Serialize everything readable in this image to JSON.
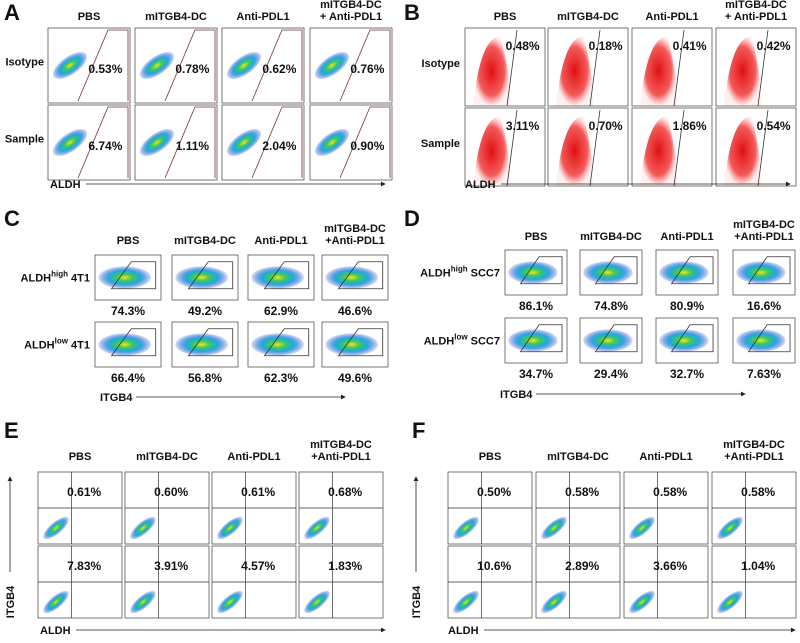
{
  "panels": [
    {
      "letter": "A",
      "columns": [
        [
          "PBS"
        ],
        [
          "mITGB4-DC"
        ],
        [
          "Anti-PDL1"
        ],
        [
          "mITGB4-DC",
          "+ Anti-PDL1"
        ]
      ],
      "rows": [
        {
          "label": "Isotype",
          "values": [
            "0.53%",
            "0.78%",
            "0.62%",
            "0.76%"
          ]
        },
        {
          "label": "Sample",
          "values": [
            "6.74%",
            "1.11%",
            "2.04%",
            "0.90%"
          ],
          "highlight_color": "#e8261f"
        }
      ],
      "x_axis_label": "ALDH"
    },
    {
      "letter": "B",
      "columns": [
        [
          "PBS"
        ],
        [
          "mITGB4-DC"
        ],
        [
          "Anti-PDL1"
        ],
        [
          "mITGB4-DC",
          "+ Anti-PDL1"
        ]
      ],
      "rows": [
        {
          "label": "Isotype",
          "values": [
            "0.48%",
            "0.18%",
            "0.41%",
            "0.42%"
          ]
        },
        {
          "label": "Sample",
          "values": [
            "3.11%",
            "0.70%",
            "1.86%",
            "0.54%"
          ],
          "highlight_color": "#e8261f"
        }
      ],
      "x_axis_label": "ALDH"
    },
    {
      "letter": "C",
      "columns": [
        [
          "PBS"
        ],
        [
          "mITGB4-DC"
        ],
        [
          "Anti-PDL1"
        ],
        [
          "mITGB4-DC",
          "+Anti-PDL1"
        ]
      ],
      "rows": [
        {
          "label": {
            "text": "ALDH",
            "sup": "high",
            "suffix": " 4T1"
          },
          "values": [
            "74.3%",
            "49.2%",
            "62.9%",
            "46.6%"
          ],
          "highlight_color": "#e8261f"
        },
        {
          "label": {
            "text": "ALDH",
            "sup": "low",
            "suffix": " 4T1"
          },
          "values": [
            "66.4%",
            "56.8%",
            "62.3%",
            "49.6%"
          ],
          "highlight_color": "#e8261f"
        }
      ],
      "x_axis_label": "ITGB4"
    },
    {
      "letter": "D",
      "columns": [
        [
          "PBS"
        ],
        [
          "mITGB4-DC"
        ],
        [
          "Anti-PDL1"
        ],
        [
          "mITGB4-DC",
          "+Anti-PDL1"
        ]
      ],
      "rows": [
        {
          "label": {
            "text": "ALDH",
            "sup": "high",
            "suffix": " SCC7"
          },
          "values": [
            "86.1%",
            "74.8%",
            "80.9%",
            "16.6%"
          ],
          "highlight_color": "#e8261f"
        },
        {
          "label": {
            "text": "ALDH",
            "sup": "low",
            "suffix": " SCC7"
          },
          "values": [
            "34.7%",
            "29.4%",
            "32.7%",
            "7.63%"
          ],
          "highlight_color": "#e8261f"
        }
      ],
      "x_axis_label": "ITGB4"
    },
    {
      "letter": "E",
      "columns": [
        [
          "PBS"
        ],
        [
          "mITGB4-DC"
        ],
        [
          "Anti-PDL1"
        ],
        [
          "mITGB4-DC",
          "+Anti-PDL1"
        ]
      ],
      "rows": [
        {
          "values": [
            "0.61%",
            "0.60%",
            "0.61%",
            "0.68%"
          ]
        },
        {
          "values": [
            "7.83%",
            "3.91%",
            "4.57%",
            "1.83%"
          ],
          "highlight_color": "#e8261f"
        }
      ],
      "x_axis_label": "ALDH",
      "y_axis_label": "ITGB4"
    },
    {
      "letter": "F",
      "columns": [
        [
          "PBS"
        ],
        [
          "mITGB4-DC"
        ],
        [
          "Anti-PDL1"
        ],
        [
          "mITGB4-DC",
          "+Anti-PDL1"
        ]
      ],
      "rows": [
        {
          "values": [
            "0.50%",
            "0.58%",
            "0.58%",
            "0.58%"
          ]
        },
        {
          "values": [
            "10.6%",
            "2.89%",
            "3.66%",
            "1.04%"
          ],
          "highlight_color": "#e8261f"
        }
      ],
      "x_axis_label": "ALDH",
      "y_axis_label": "ITGB4"
    }
  ]
}
